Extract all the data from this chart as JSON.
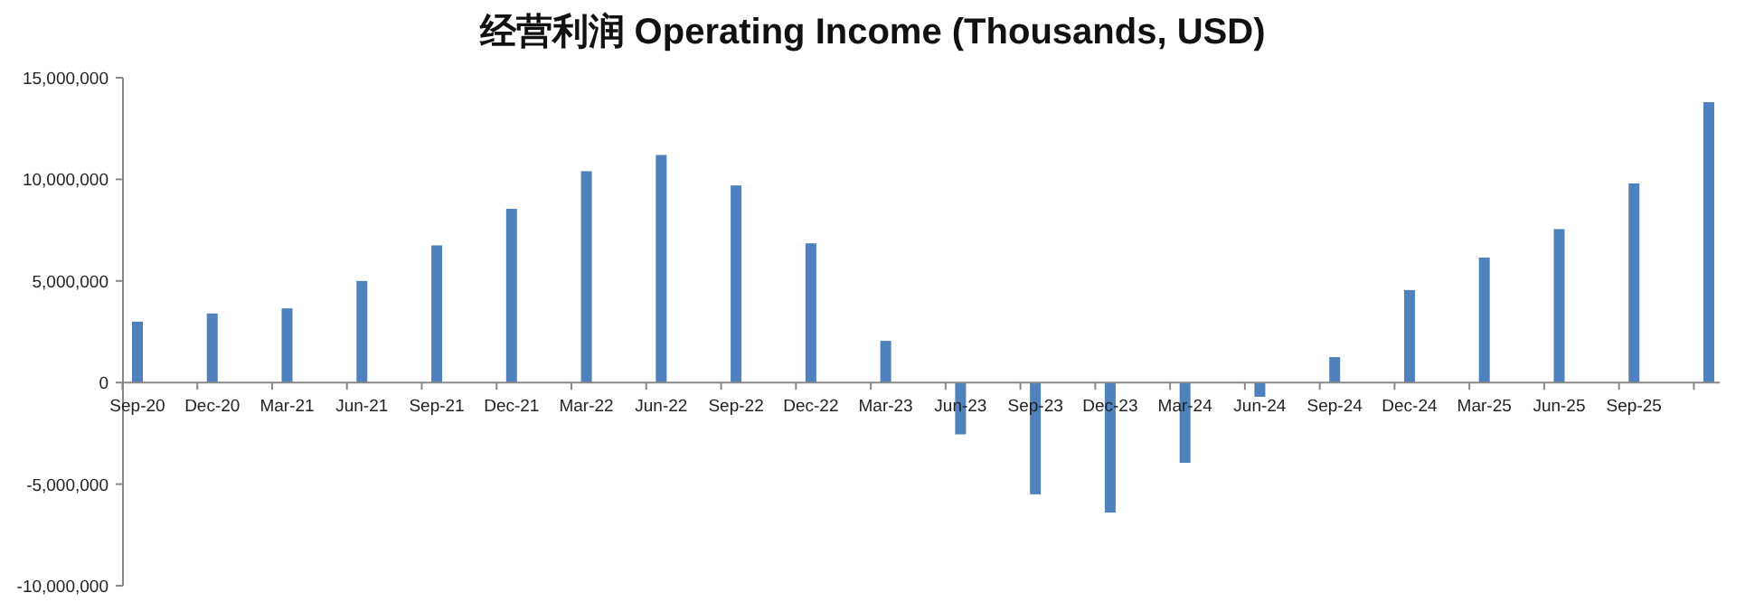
{
  "chart_data": {
    "type": "bar",
    "title": "经营利润 Operating Income (Thousands, USD)",
    "categories": [
      "Sep-20",
      "Dec-20",
      "Mar-21",
      "Jun-21",
      "Sep-21",
      "Dec-21",
      "Mar-22",
      "Jun-22",
      "Sep-22",
      "Dec-22",
      "Mar-23",
      "Jun-23",
      "Sep-23",
      "Dec-23",
      "Mar-24",
      "Jun-24",
      "Sep-24",
      "Dec-24",
      "Mar-25",
      "Jun-25",
      "Sep-25",
      null
    ],
    "values": [
      3000000,
      3400000,
      3650000,
      5000000,
      6750000,
      8550000,
      10400000,
      11200000,
      9700000,
      6850000,
      2050000,
      -2550000,
      -5500000,
      -6400000,
      -3950000,
      -700000,
      1250000,
      4550000,
      6150000,
      7550000,
      9800000,
      13800000
    ],
    "color": "#4f81bd",
    "ylim": [
      -10000000,
      15000000
    ],
    "yticks": [
      {
        "value": -10000000,
        "label": "-10,000,000"
      },
      {
        "value": -5000000,
        "label": "-5,000,000"
      },
      {
        "value": 0,
        "label": "0"
      },
      {
        "value": 5000000,
        "label": "5,000,000"
      },
      {
        "value": 10000000,
        "label": "10,000,000"
      },
      {
        "value": 15000000,
        "label": "15,000,000"
      }
    ]
  }
}
